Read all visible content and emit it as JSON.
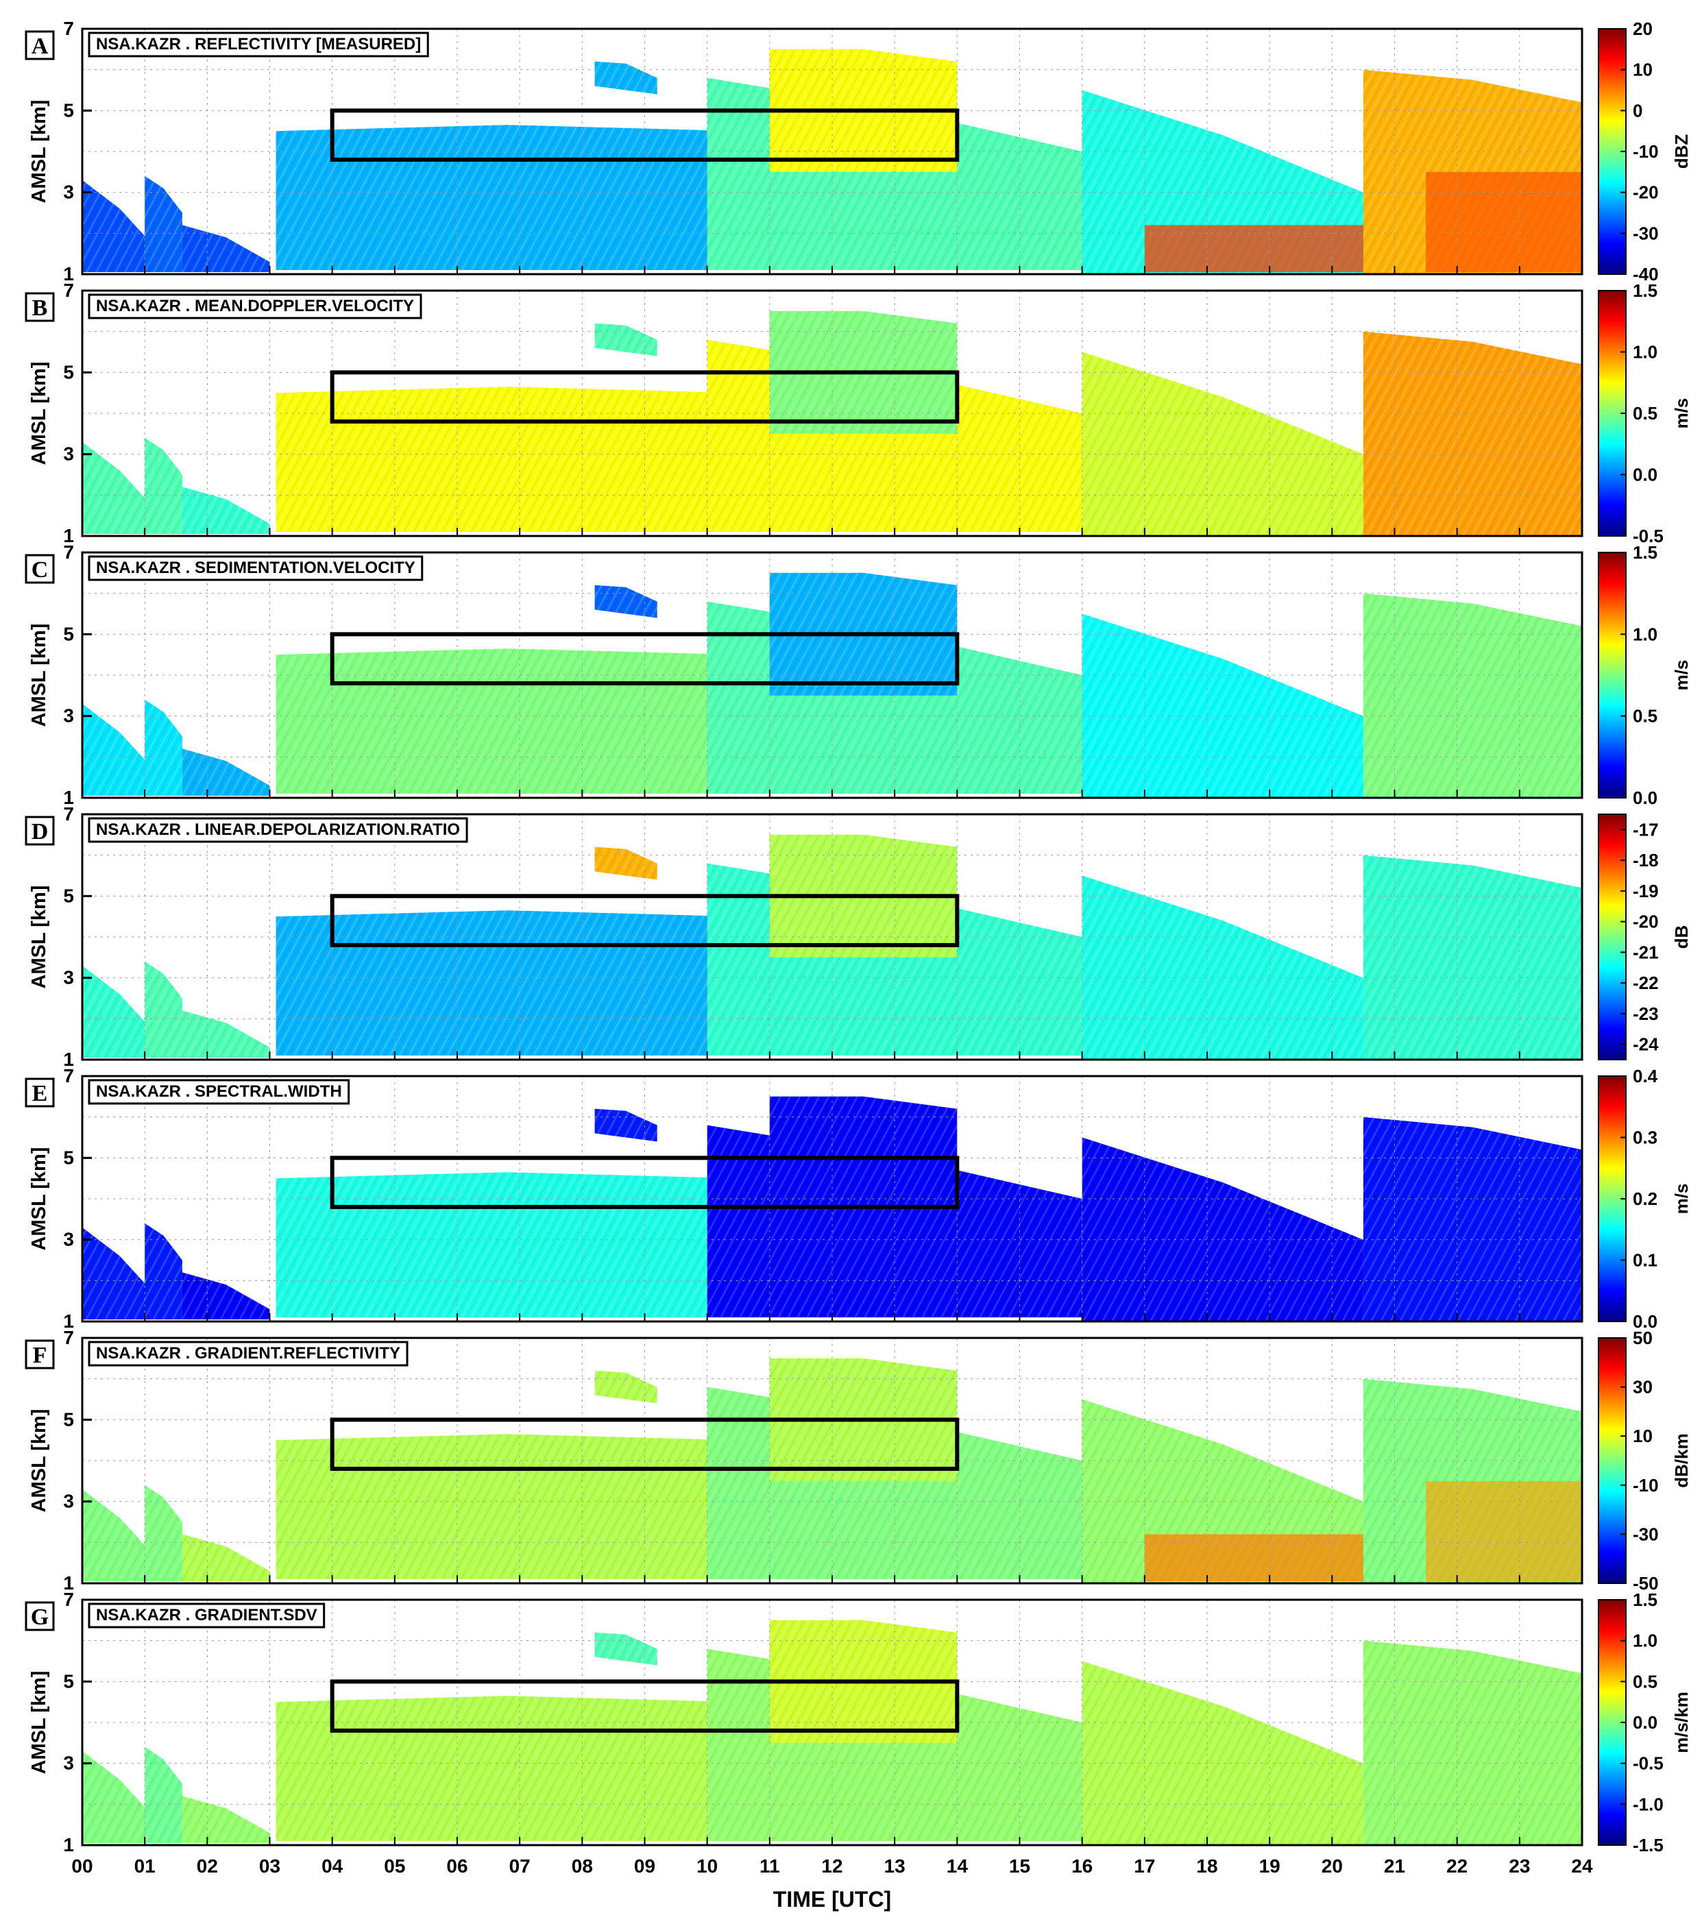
{
  "chart_data": {
    "type": "heatmap",
    "xlabel": "TIME [UTC]",
    "ylabel": "AMSL [km]",
    "xlim": [
      0,
      24
    ],
    "ylim": [
      1,
      7
    ],
    "x_ticks": [
      "00",
      "01",
      "02",
      "03",
      "04",
      "05",
      "06",
      "07",
      "08",
      "09",
      "10",
      "11",
      "12",
      "13",
      "14",
      "15",
      "16",
      "17",
      "18",
      "19",
      "20",
      "21",
      "22",
      "23",
      "24"
    ],
    "y_ticks": [
      "1",
      "3",
      "5",
      "7"
    ],
    "grid": true,
    "highlight_box": {
      "x": [
        4,
        14
      ],
      "y": [
        3.8,
        5.0
      ]
    },
    "cloud_layers": [
      {
        "x": [
          0.0,
          1.2
        ],
        "top": [
          3.3,
          1.6
        ],
        "base": [
          1.05,
          1.05
        ]
      },
      {
        "x": [
          1.0,
          1.6
        ],
        "top": [
          3.4,
          2.5
        ],
        "base": [
          1.05,
          1.05
        ]
      },
      {
        "x": [
          1.6,
          3.0
        ],
        "top": [
          2.2,
          1.3
        ],
        "base": [
          1.05,
          1.05
        ]
      },
      {
        "x": [
          3.1,
          10.5
        ],
        "top": [
          4.5,
          4.5
        ],
        "base": [
          1.1,
          1.1
        ]
      },
      {
        "x": [
          10.0,
          16.0
        ],
        "top": [
          5.8,
          4.0
        ],
        "base": [
          1.1,
          1.1
        ]
      },
      {
        "x": [
          11.0,
          14.0
        ],
        "top": [
          6.5,
          6.2
        ],
        "base": [
          3.5,
          3.5
        ]
      },
      {
        "x": [
          16.0,
          20.5
        ],
        "top": [
          5.5,
          3.0
        ],
        "base": [
          1.0,
          1.0
        ]
      },
      {
        "x": [
          20.5,
          24.0
        ],
        "top": [
          6.0,
          5.2
        ],
        "base": [
          1.0,
          1.0
        ]
      },
      {
        "x": [
          8.2,
          9.2
        ],
        "top": [
          6.2,
          5.8
        ],
        "base": [
          5.6,
          5.4
        ]
      }
    ],
    "panels": [
      {
        "letter": "A",
        "label": "NSA.KAZR   .   REFLECTIVITY [MEASURED]",
        "unit": "dBZ",
        "colorbar_ticks": [
          "20",
          "10",
          "0",
          "-10",
          "-20",
          "-30",
          "-40"
        ],
        "range": [
          -40,
          20
        ]
      },
      {
        "letter": "B",
        "label": "NSA.KAZR   .   MEAN.DOPPLER.VELOCITY",
        "unit": "m/s",
        "colorbar_ticks": [
          "1.5",
          "1.0",
          "0.5",
          "0.0",
          "-0.5"
        ],
        "range": [
          -0.5,
          1.5
        ]
      },
      {
        "letter": "C",
        "label": "NSA.KAZR   .   SEDIMENTATION.VELOCITY",
        "unit": "m/s",
        "colorbar_ticks": [
          "1.5",
          "1.0",
          "0.5",
          "0.0"
        ],
        "range": [
          0.0,
          1.5
        ]
      },
      {
        "letter": "D",
        "label": "NSA.KAZR   .   LINEAR.DEPOLARIZATION.RATIO",
        "unit": "dB",
        "colorbar_ticks": [
          "-17",
          "-18",
          "-19",
          "-20",
          "-21",
          "-22",
          "-23",
          "-24"
        ],
        "range": [
          -24.5,
          -16.5
        ]
      },
      {
        "letter": "E",
        "label": "NSA.KAZR   .   SPECTRAL.WIDTH",
        "unit": "m/s",
        "colorbar_ticks": [
          "0.4",
          "0.3",
          "0.2",
          "0.1",
          "0.0"
        ],
        "range": [
          0.0,
          0.4
        ]
      },
      {
        "letter": "F",
        "label": "NSA.KAZR   .   GRADIENT.REFLECTIVITY",
        "unit": "dB/km",
        "colorbar_ticks": [
          "50",
          "30",
          "10",
          "-10",
          "-30",
          "-50"
        ],
        "range": [
          -50,
          50
        ]
      },
      {
        "letter": "G",
        "label": "NSA.KAZR   .   GRADIENT.SDV",
        "unit": "m/s/km",
        "colorbar_ticks": [
          "1.5",
          "1.0",
          "0.5",
          "0.0",
          "-0.5",
          "-1.0",
          "-1.5"
        ],
        "range": [
          -1.5,
          1.5
        ]
      }
    ],
    "colormap": [
      "#00007f",
      "#0000ff",
      "#007fff",
      "#00ffff",
      "#7fff7f",
      "#ffff00",
      "#ff7f00",
      "#ff0000",
      "#7f0000"
    ]
  }
}
